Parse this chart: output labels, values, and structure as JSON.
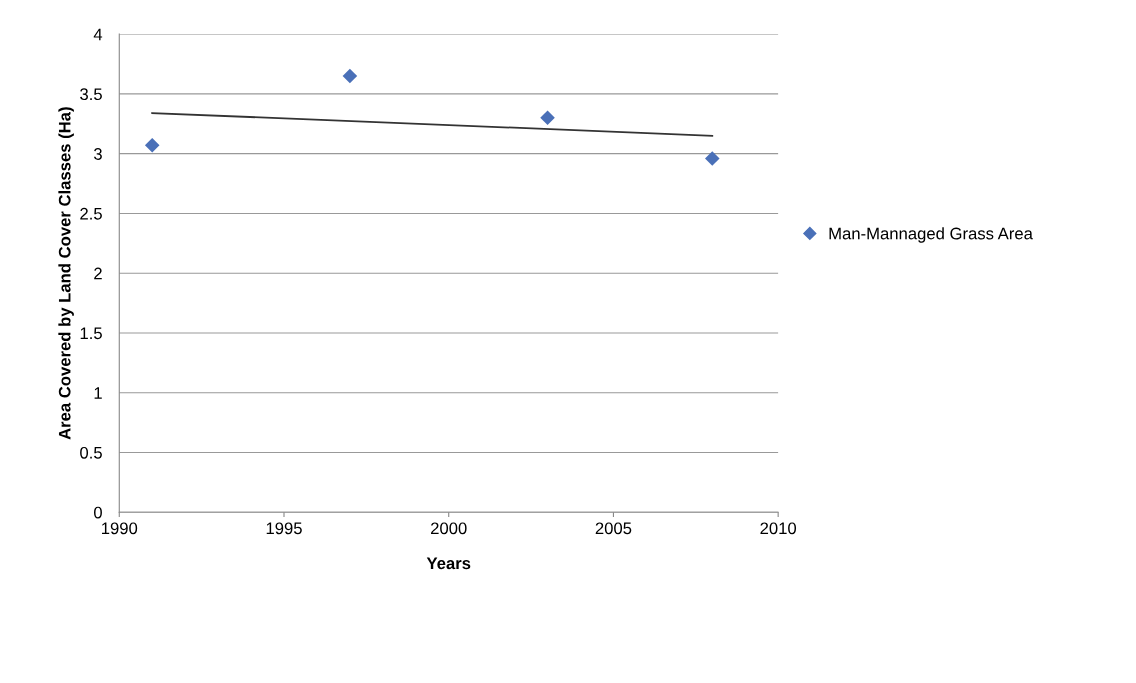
{
  "chart_data": {
    "type": "scatter",
    "xlabel": "Years",
    "ylabel": "Area Covered by Land Cover Classes (Ha)",
    "series": [
      {
        "name": "Man-Mannaged Grass Area",
        "color": "#4a70b8",
        "x": [
          1991,
          1997,
          2003,
          2008
        ],
        "values": [
          3.07,
          3.65,
          3.3,
          2.96
        ],
        "marker": "diamond"
      },
      {
        "type": "line",
        "color": "#333333",
        "x": [
          1991,
          2008
        ],
        "values": [
          3.34,
          3.15
        ],
        "marker": "none"
      }
    ],
    "xlim": [
      1990,
      2010
    ],
    "xticks": [
      1990,
      1995,
      2000,
      2005,
      2010
    ],
    "ylim": [
      0,
      4
    ],
    "yticks": [
      0,
      0.5,
      1,
      1.5,
      2,
      2.5,
      3,
      3.5,
      4
    ],
    "grid": "y",
    "legend": "right"
  }
}
